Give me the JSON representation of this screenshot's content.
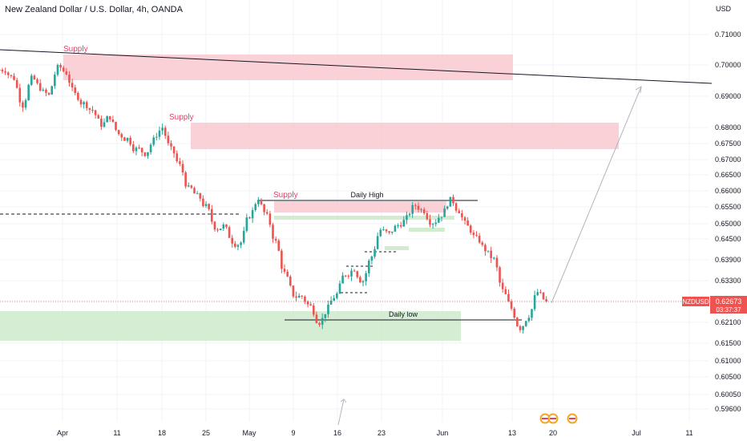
{
  "chart_title": "New Zealand Dollar / U.S. Dollar, 4h, OANDA",
  "currency": "USD",
  "colors": {
    "up": "#26a69a",
    "down": "#ef5350",
    "supply_zone": "#f7c6cc",
    "demand_zone": "#cdeacb",
    "price_label": "#ef5350",
    "line": "#131722"
  },
  "chart_data": {
    "type": "candlestick",
    "instrument": "NZDUSD",
    "timeframe": "4h",
    "y_ticks": [
      "0.71000",
      "0.70000",
      "0.69000",
      "0.68000",
      "0.67500",
      "0.67000",
      "0.66500",
      "0.66000",
      "0.65500",
      "0.65000",
      "0.64500",
      "0.63900",
      "0.63300",
      "0.62700",
      "0.62100",
      "0.61500",
      "0.61000",
      "0.60500",
      "0.60050",
      "0.59600"
    ],
    "x_ticks": [
      "Apr",
      "11",
      "18",
      "25",
      "May",
      "9",
      "16",
      "23",
      "Jun",
      "13",
      "20",
      "Jul",
      "11"
    ],
    "last_price": {
      "symbol": "NZDUSD",
      "price": "0.62673",
      "countdown": "03:37:37"
    },
    "price_path": [
      [
        "Apr",
        0.6985
      ],
      [
        "Apr",
        0.6958
      ],
      [
        "Apr",
        0.6872
      ],
      [
        "Apr",
        0.6955
      ],
      [
        "Apr",
        0.6927
      ],
      [
        "11",
        0.6902
      ],
      [
        "11",
        0.699
      ],
      [
        "11",
        0.6975
      ],
      [
        "11",
        0.6905
      ],
      [
        "11",
        0.6876
      ],
      [
        "11",
        0.6856
      ],
      [
        "11",
        0.681
      ],
      [
        "18",
        0.6835
      ],
      [
        "18",
        0.678
      ],
      [
        "18",
        0.6765
      ],
      [
        "18",
        0.6732
      ],
      [
        "18",
        0.672
      ],
      [
        "18",
        0.676
      ],
      [
        "25",
        0.68
      ],
      [
        "25",
        0.673
      ],
      [
        "25",
        0.668
      ],
      [
        "25",
        0.6606
      ],
      [
        "25",
        0.6582
      ],
      [
        "May",
        0.655
      ],
      [
        "May",
        0.649
      ],
      [
        "May",
        0.6492
      ],
      [
        "May",
        0.6445
      ],
      [
        "May",
        0.644
      ],
      [
        "May",
        0.6525
      ],
      [
        "May",
        0.6575
      ],
      [
        "9",
        0.652
      ],
      [
        "9",
        0.644
      ],
      [
        "9",
        0.635
      ],
      [
        "9",
        0.629
      ],
      [
        "9",
        0.6285
      ],
      [
        "16",
        0.6255
      ],
      [
        "16",
        0.6212
      ],
      [
        "16",
        0.625
      ],
      [
        "16",
        0.629
      ],
      [
        "16",
        0.635
      ],
      [
        "16",
        0.6366
      ],
      [
        "23",
        0.633
      ],
      [
        "23",
        0.64
      ],
      [
        "23",
        0.648
      ],
      [
        "23",
        0.6465
      ],
      [
        "23",
        0.6495
      ],
      [
        "23",
        0.6515
      ],
      [
        "Jun",
        0.6555
      ],
      [
        "Jun",
        0.654
      ],
      [
        "Jun",
        0.6505
      ],
      [
        "Jun",
        0.6528
      ],
      [
        "Jun",
        0.657
      ],
      [
        "Jun",
        0.654
      ],
      [
        "Jun",
        0.649
      ],
      [
        "Jun",
        0.645
      ],
      [
        "Jun",
        0.642
      ],
      [
        "13",
        0.639
      ],
      [
        "13",
        0.63
      ],
      [
        "13",
        0.625
      ],
      [
        "13",
        0.6195
      ],
      [
        "13",
        0.6232
      ],
      [
        "13",
        0.6297
      ],
      [
        "13",
        0.6267
      ]
    ]
  },
  "annotations": {
    "supply_1": "Supply",
    "supply_2": "Supply",
    "supply_3": "Supply",
    "daily_high": "Daily High",
    "daily_low": "Daily low"
  }
}
